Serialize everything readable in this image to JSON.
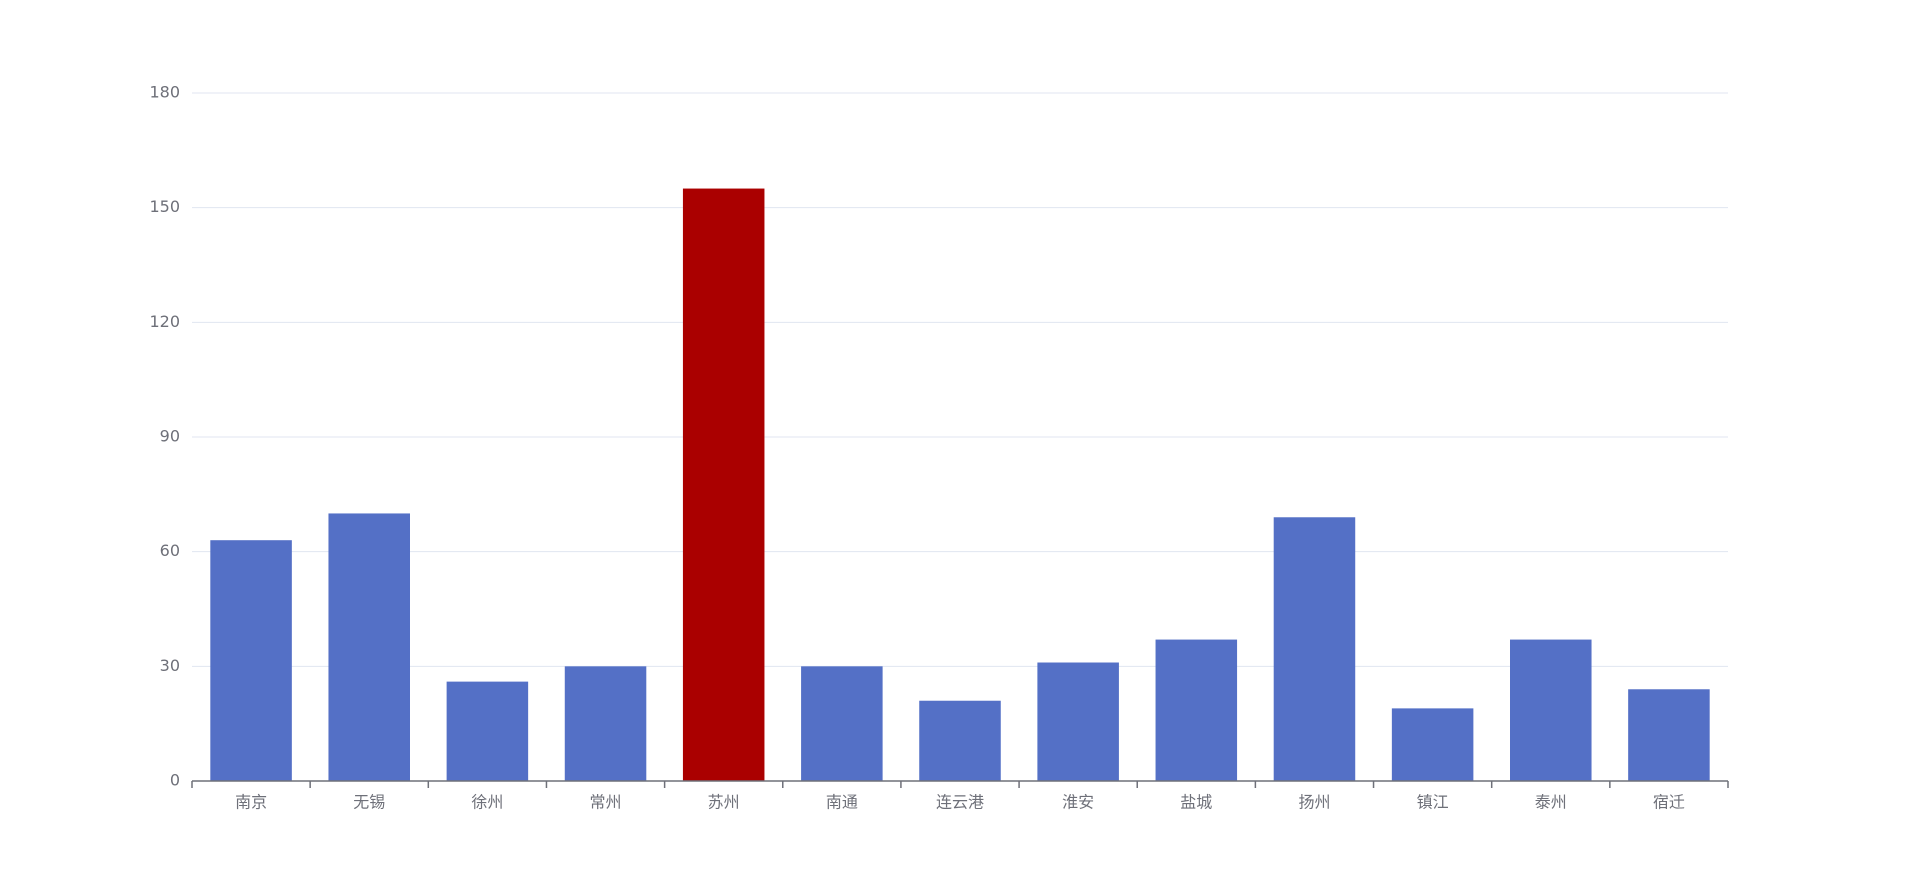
{
  "chart_data": {
    "type": "bar",
    "categories": [
      "南京",
      "无锡",
      "徐州",
      "常州",
      "苏州",
      "南通",
      "连云港",
      "淮安",
      "盐城",
      "扬州",
      "镇江",
      "泰州",
      "宿迁"
    ],
    "values": [
      63,
      70,
      26,
      30,
      155,
      30,
      21,
      31,
      37,
      69,
      19,
      37,
      24
    ],
    "colors": [
      "#5470c6",
      "#5470c6",
      "#5470c6",
      "#5470c6",
      "#aa0000",
      "#5470c6",
      "#5470c6",
      "#5470c6",
      "#5470c6",
      "#5470c6",
      "#5470c6",
      "#5470c6",
      "#5470c6"
    ],
    "ylim": [
      0,
      180
    ],
    "yticks": [
      0,
      30,
      60,
      90,
      120,
      150,
      180
    ],
    "grid": true
  }
}
